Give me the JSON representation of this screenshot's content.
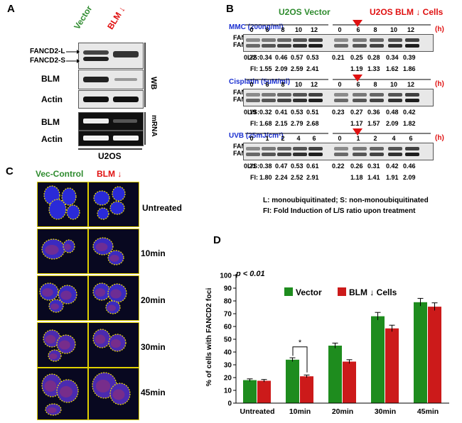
{
  "panelA": {
    "label": "A",
    "col_vector": "Vector",
    "col_blm": "BLM ↓",
    "rows": [
      "FANCD2-L",
      "FANCD2-S",
      "BLM",
      "Actin",
      "BLM",
      "Actin"
    ],
    "wb_label": "WB",
    "mrna_label": "mRNA",
    "cell_line": "U2OS"
  },
  "panelB": {
    "label": "B",
    "group_vector": "U2OS Vector",
    "group_blm": "U2OS BLM ↓ Cells",
    "unit": "(h)",
    "band_l": "FANCD2-L",
    "band_s": "FANCD2-S",
    "ls_label": "L/S:",
    "fi_label": "FI:",
    "treatments": [
      {
        "name": "MMC (200ng/ml)",
        "times": [
          "0",
          "6",
          "8",
          "10",
          "12",
          "0",
          "6",
          "8",
          "10",
          "12"
        ],
        "ls": [
          "0.22",
          "0.34",
          "0.46",
          "0.57",
          "0.53",
          "0.21",
          "0.25",
          "0.28",
          "0.34",
          "0.39"
        ],
        "fi": [
          "1.55",
          "2.09",
          "2.59",
          "2.41",
          "1.19",
          "1.33",
          "1.62",
          "1.86"
        ]
      },
      {
        "name": "Cisplatin (5μM/ml)",
        "times": [
          "0",
          "6",
          "8",
          "10",
          "12",
          "0",
          "6",
          "8",
          "10",
          "12"
        ],
        "ls": [
          "0.19",
          "0.32",
          "0.41",
          "0.53",
          "0.51",
          "0.23",
          "0.27",
          "0.36",
          "0.48",
          "0.42"
        ],
        "fi": [
          "1.68",
          "2.15",
          "2.79",
          "2.68",
          "1.17",
          "1.57",
          "2.09",
          "1.82"
        ]
      },
      {
        "name": "UVB (25mJ/cm²)",
        "times": [
          "0",
          "1",
          "2",
          "4",
          "6",
          "0",
          "1",
          "2",
          "4",
          "6"
        ],
        "ls": [
          "0.21",
          "0.38",
          "0.47",
          "0.53",
          "0.61",
          "0.22",
          "0.26",
          "0.31",
          "0.42",
          "0.46"
        ],
        "fi": [
          "1.80",
          "2.24",
          "2.52",
          "2.91",
          "1.18",
          "1.41",
          "1.91",
          "2.09"
        ]
      }
    ],
    "legend1": "L: monoubiquitinated;  S: non-monoubiquitinated",
    "legend2": "FI: Fold Induction of L/S ratio upon treatment"
  },
  "panelC": {
    "label": "C",
    "col_vec": "Vec-Control",
    "col_blm": "BLM ↓",
    "rows": [
      "Untreated",
      "10min",
      "20min",
      "30min",
      "45min"
    ]
  },
  "panelD": {
    "label": "D",
    "pvalue": "p < 0.01",
    "star": "*",
    "chart_data": {
      "type": "bar",
      "categories": [
        "Untreated",
        "10min",
        "20min",
        "30min",
        "45min"
      ],
      "series": [
        {
          "name": "Vector",
          "values": [
            18,
            34,
            45,
            68,
            79
          ],
          "errors": [
            1,
            1.5,
            2,
            3,
            3
          ],
          "color": "#1e8c1e"
        },
        {
          "name": "BLM ↓ Cells",
          "values": [
            17.5,
            21,
            32.5,
            58.5,
            75.5
          ],
          "errors": [
            1,
            1,
            1.5,
            2.5,
            3
          ],
          "color": "#cc1a1a"
        }
      ],
      "ylabel": "% of cells with FANCD2 foci",
      "ylim": [
        0,
        100
      ],
      "yticks": [
        "0",
        "10",
        "20",
        "30",
        "40",
        "50",
        "60",
        "70",
        "80",
        "90",
        "100"
      ],
      "legend": "top-center"
    }
  }
}
